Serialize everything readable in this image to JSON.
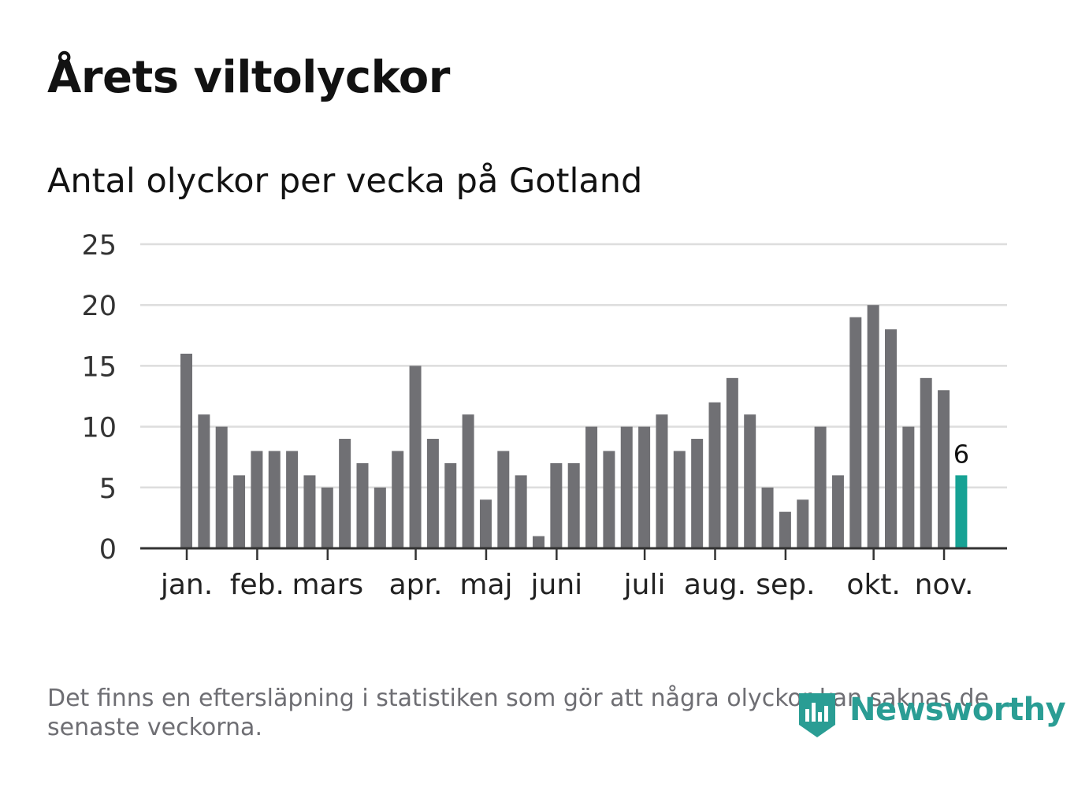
{
  "header": {
    "title": "Årets viltolyckor",
    "subtitle": "Antal olyckor per vecka på Gotland"
  },
  "footer": {
    "note": "Det finns en eftersläpning i statistiken som gör att några olyckor kan saknas de senaste veckorna.",
    "brand": "Newsworthy",
    "brand_icon": "newsworthy-logo-icon"
  },
  "colors": {
    "bar": "#707074",
    "highlight": "#16a294",
    "grid": "#dddddd",
    "axis": "#333333",
    "brand": "#2a9d94"
  },
  "chart_data": {
    "type": "bar",
    "title": "Antal olyckor per vecka på Gotland",
    "xlabel": "",
    "ylabel": "",
    "ylim": [
      0,
      25
    ],
    "yticks": [
      0,
      5,
      10,
      15,
      20,
      25
    ],
    "grid": true,
    "values": [
      16,
      11,
      10,
      6,
      8,
      8,
      8,
      6,
      5,
      9,
      7,
      5,
      8,
      15,
      9,
      7,
      11,
      4,
      8,
      6,
      1,
      7,
      7,
      10,
      8,
      10,
      10,
      11,
      8,
      9,
      12,
      14,
      11,
      5,
      3,
      4,
      10,
      6,
      19,
      20,
      18,
      10,
      14,
      13,
      6
    ],
    "highlight_index": 44,
    "highlight_label": "6",
    "month_labels": [
      {
        "label": "jan.",
        "week": 0
      },
      {
        "label": "feb.",
        "week": 4
      },
      {
        "label": "mars",
        "week": 8
      },
      {
        "label": "apr.",
        "week": 13
      },
      {
        "label": "maj",
        "week": 17
      },
      {
        "label": "juni",
        "week": 21
      },
      {
        "label": "juli",
        "week": 26
      },
      {
        "label": "aug.",
        "week": 30
      },
      {
        "label": "sep.",
        "week": 34
      },
      {
        "label": "okt.",
        "week": 39
      },
      {
        "label": "nov.",
        "week": 43
      }
    ]
  }
}
